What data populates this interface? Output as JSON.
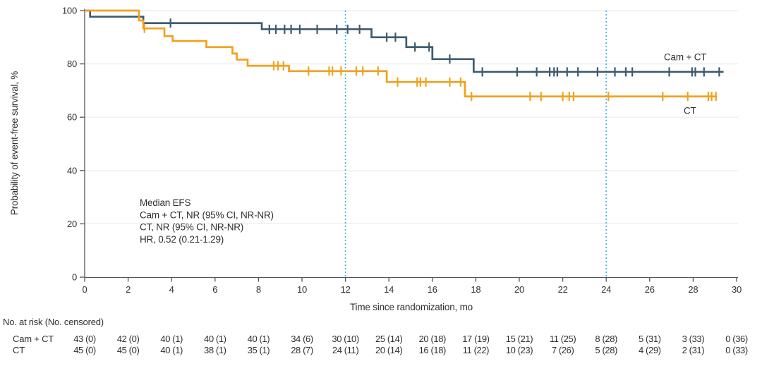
{
  "axes": {
    "y_label": "Probability of event-free survival, %",
    "x_label": "Time since randomization, mo",
    "y_ticks": [
      100,
      80,
      60,
      40,
      20,
      0
    ],
    "x_ticks": [
      0,
      2,
      4,
      6,
      8,
      10,
      12,
      14,
      16,
      18,
      20,
      22,
      24,
      26,
      28,
      30
    ],
    "xlim": [
      0,
      30
    ],
    "ylim": [
      0,
      100
    ]
  },
  "reference_lines": {
    "months": [
      12,
      24
    ],
    "color": "#41b6e6"
  },
  "annotation": {
    "lines": [
      "Median EFS",
      "Cam + CT, NR (95% CI, NR-NR)",
      "CT, NR (95% CI, NR-NR)",
      "HR, 0.52 (0.21-1.29)"
    ]
  },
  "chart_data": {
    "type": "line",
    "subtype": "kaplan-meier-step",
    "title": "",
    "xlabel": "Time since randomization, mo",
    "ylabel": "Probability of event-free survival, %",
    "xlim": [
      0,
      30
    ],
    "ylim": [
      0,
      100
    ],
    "grid": "horizontal-light",
    "legend_position": "inline-right",
    "series": [
      {
        "name": "Cam + CT",
        "color": "#3e5a6e",
        "steps": [
          [
            0,
            100
          ],
          [
            0.25,
            97.7
          ],
          [
            2.7,
            95.3
          ],
          [
            8.15,
            93.0
          ],
          [
            13.2,
            90.0
          ],
          [
            14.8,
            86.3
          ],
          [
            16.0,
            81.8
          ],
          [
            17.9,
            77.0
          ]
        ],
        "end_mo": 29.4,
        "censors": [
          [
            3.95,
            95.3
          ],
          [
            8.5,
            93
          ],
          [
            8.8,
            93
          ],
          [
            9.2,
            93
          ],
          [
            9.5,
            93
          ],
          [
            9.9,
            93
          ],
          [
            10.7,
            93
          ],
          [
            11.6,
            93
          ],
          [
            12.1,
            93
          ],
          [
            12.65,
            93
          ],
          [
            13.9,
            90
          ],
          [
            14.3,
            90
          ],
          [
            15.2,
            86.3
          ],
          [
            15.85,
            86.3
          ],
          [
            16.8,
            81.8
          ],
          [
            18.3,
            77
          ],
          [
            19.9,
            77
          ],
          [
            20.8,
            77
          ],
          [
            21.4,
            77
          ],
          [
            21.6,
            77
          ],
          [
            21.75,
            77
          ],
          [
            22.2,
            77
          ],
          [
            22.7,
            77
          ],
          [
            23.6,
            77
          ],
          [
            24.4,
            77
          ],
          [
            24.9,
            77
          ],
          [
            25.2,
            77
          ],
          [
            26.9,
            77
          ],
          [
            27.95,
            77
          ],
          [
            28.1,
            77
          ],
          [
            28.5,
            77
          ],
          [
            29.2,
            77
          ]
        ]
      },
      {
        "name": "CT",
        "color": "#f2a11d",
        "steps": [
          [
            0,
            100
          ],
          [
            2.5,
            96.3
          ],
          [
            2.7,
            93.3
          ],
          [
            3.67,
            90.4
          ],
          [
            4.05,
            88.6
          ],
          [
            5.6,
            86.3
          ],
          [
            6.8,
            83.9
          ],
          [
            7.0,
            81.6
          ],
          [
            7.5,
            79.3
          ],
          [
            9.4,
            77.3
          ],
          [
            13.9,
            73.2
          ],
          [
            17.5,
            67.8
          ]
        ],
        "end_mo": 29.1,
        "censors": [
          [
            2.75,
            93.3
          ],
          [
            8.7,
            79.3
          ],
          [
            8.9,
            79.3
          ],
          [
            9.15,
            79.3
          ],
          [
            10.3,
            77.3
          ],
          [
            11.25,
            77.3
          ],
          [
            11.4,
            77.3
          ],
          [
            11.8,
            77.3
          ],
          [
            12.5,
            77.3
          ],
          [
            12.8,
            77.3
          ],
          [
            13.5,
            77.3
          ],
          [
            14.4,
            73.2
          ],
          [
            15.3,
            73.2
          ],
          [
            15.45,
            73.2
          ],
          [
            15.7,
            73.2
          ],
          [
            16.8,
            73.2
          ],
          [
            17.3,
            73.2
          ],
          [
            17.8,
            67.8
          ],
          [
            20.5,
            67.8
          ],
          [
            21.0,
            67.8
          ],
          [
            22.0,
            67.8
          ],
          [
            22.3,
            67.8
          ],
          [
            22.5,
            67.8
          ],
          [
            24.1,
            67.8
          ],
          [
            26.6,
            67.8
          ],
          [
            27.75,
            67.8
          ],
          [
            28.7,
            67.8
          ],
          [
            28.85,
            67.8
          ],
          [
            29.05,
            67.8
          ]
        ]
      }
    ]
  },
  "risk_table": {
    "title": "No. at risk (No. censored)",
    "columns_mo": [
      0,
      2,
      4,
      6,
      8,
      10,
      12,
      14,
      16,
      18,
      20,
      22,
      24,
      26,
      28,
      30
    ],
    "rows": [
      {
        "label": "Cam + CT",
        "values": [
          "43 (0)",
          "42 (0)",
          "40 (1)",
          "40 (1)",
          "40 (1)",
          "34 (6)",
          "30 (10)",
          "25 (14)",
          "20 (18)",
          "17 (19)",
          "15 (21)",
          "11 (25)",
          "8 (28)",
          "5 (31)",
          "3 (33)",
          "0 (36)"
        ]
      },
      {
        "label": "CT",
        "values": [
          "45 (0)",
          "45 (0)",
          "40 (1)",
          "38 (1)",
          "35 (1)",
          "28 (7)",
          "24 (11)",
          "20 (14)",
          "16 (18)",
          "11 (22)",
          "10 (23)",
          "7 (26)",
          "5 (28)",
          "4 (29)",
          "2 (31)",
          "0 (33)"
        ]
      }
    ]
  },
  "colors": {
    "axis": "#55565a",
    "grid": "#ebebeb",
    "text": "#303030",
    "reference": "#41b6e6",
    "cam_ct": "#3e5a6e",
    "ct": "#f2a11d"
  }
}
